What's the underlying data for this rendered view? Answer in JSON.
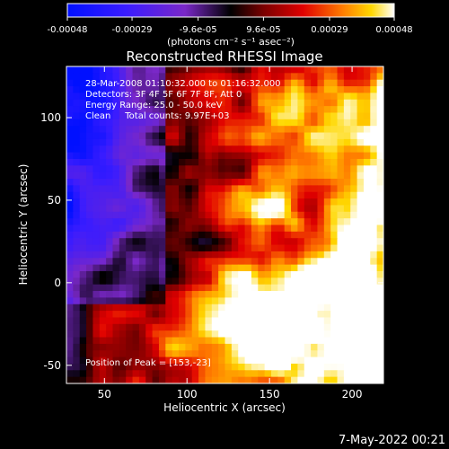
{
  "chart_data": {
    "type": "heatmap",
    "title": "Reconstructed RHESSI Image",
    "colorbar": {
      "ticks": [
        "-0.00048",
        "-0.00029",
        "-9.6e-05",
        "9.6e-05",
        "0.00029",
        "0.00048"
      ],
      "tick_values": [
        -0.00048,
        -0.00029,
        -9.6e-05,
        9.6e-05,
        0.00029,
        0.00048
      ],
      "units_label": "(photons cm⁻² s⁻¹ asec⁻²)",
      "range": [
        -0.00048,
        0.00048
      ]
    },
    "xlabel": "Heliocentric X (arcsec)",
    "ylabel": "Heliocentric Y (arcsec)",
    "xlim": [
      27,
      219
    ],
    "ylim": [
      -61,
      131
    ],
    "xticks": [
      50,
      100,
      150,
      200
    ],
    "yticks": [
      -50,
      0,
      50,
      100
    ],
    "annotations": [
      "28-Mar-2008 01:10:32.000 to 01:16:32.000",
      "Detectors: 3F 4F 5F 6F 7F 8F, Att 0",
      "Energy Range: 25.0 - 50.0 keV",
      "Clean     Total counts: 9.97E+03"
    ],
    "peak_label": "Position of Peak = [153,-23]",
    "peak": [
      153,
      -23
    ],
    "grid": false
  },
  "footer": {
    "date": "7-May-2022 00:21"
  }
}
